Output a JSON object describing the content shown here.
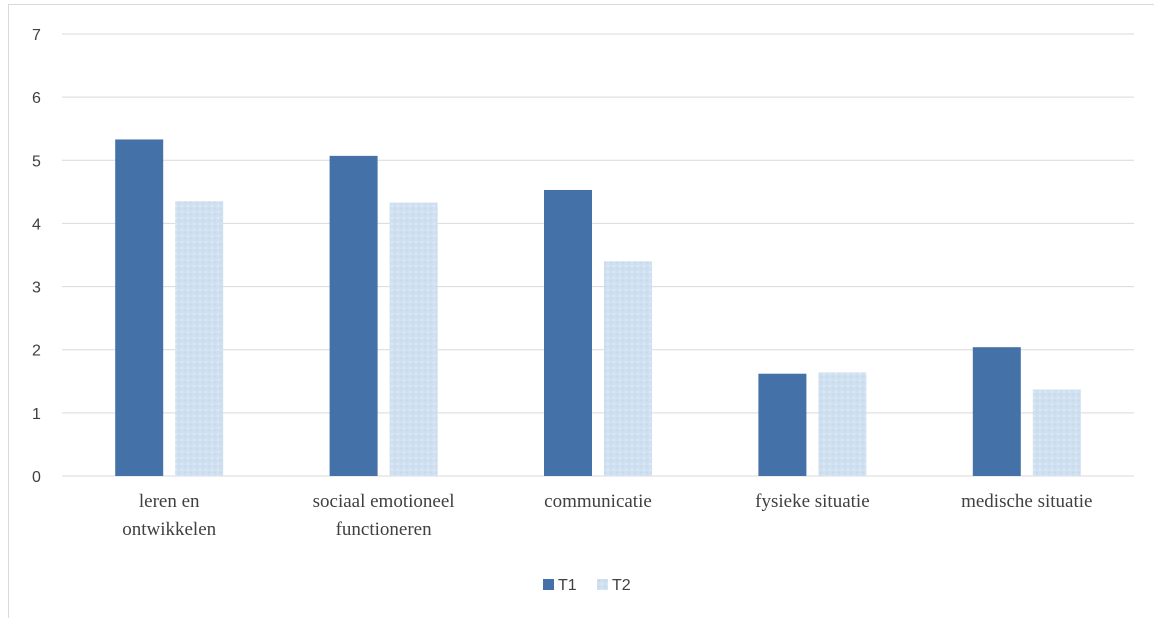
{
  "chart_data": {
    "type": "bar",
    "categories": [
      [
        "leren en",
        "ontwikkelen"
      ],
      [
        "sociaal emotioneel",
        "functioneren"
      ],
      [
        "communicatie"
      ],
      [
        "fysieke situatie"
      ],
      [
        "medische situatie"
      ]
    ],
    "series": [
      {
        "name": "T1",
        "values": [
          5.33,
          5.07,
          4.53,
          1.62,
          2.04
        ],
        "color": "#4472a8"
      },
      {
        "name": "T2",
        "values": [
          4.35,
          4.33,
          3.4,
          1.64,
          1.37
        ],
        "color": "#cfe0f1"
      }
    ],
    "yticks": [
      "0",
      "1",
      "2",
      "3",
      "4",
      "5",
      "6",
      "7"
    ],
    "ylim": [
      0,
      7
    ],
    "grid": true,
    "legend_position": "bottom"
  }
}
